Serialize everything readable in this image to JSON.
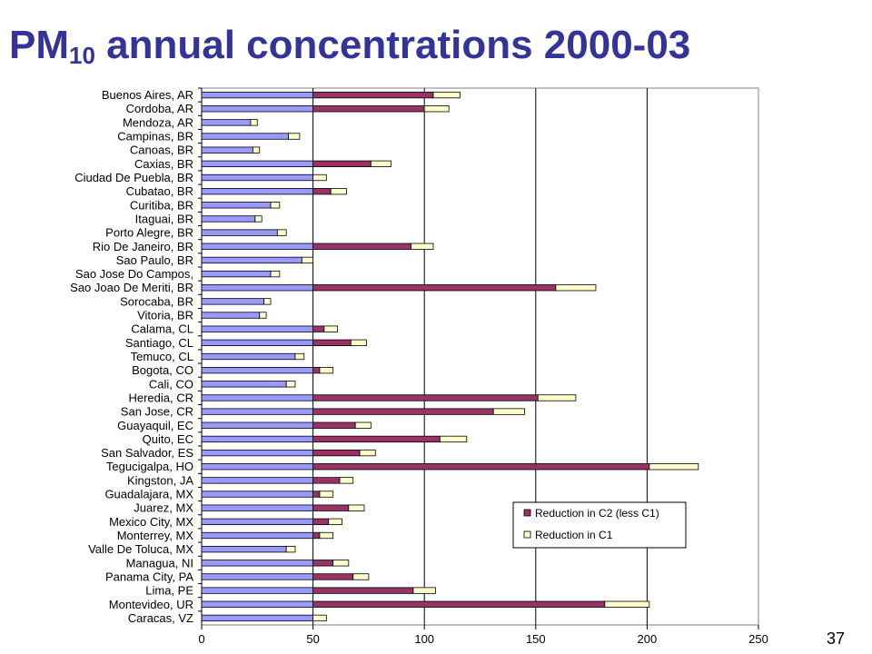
{
  "slide": {
    "title_main": "PM",
    "title_sub": "10",
    "title_rest": " annual concentrations 2000-03",
    "page_number": "37"
  },
  "chart_data": {
    "type": "bar",
    "orientation": "horizontal",
    "stacked": true,
    "title": "PM10 annual concentrations 2000-03",
    "xlabel": "",
    "ylabel": "",
    "xlim": [
      0,
      250
    ],
    "xticks": [
      0,
      50,
      100,
      150,
      200,
      250
    ],
    "grid": "vertical lines at 50, 100, 150, 200",
    "legend_position": "lower-right",
    "colors": {
      "base": "#9999ff",
      "c2": "#993366",
      "c1": "#ffffcc"
    },
    "categories": [
      "Buenos Aires, AR",
      "Cordoba, AR",
      "Mendoza, AR",
      "Campinas, BR",
      "Canoas, BR",
      "Caxias, BR",
      "Ciudad De Puebla, BR",
      "Cubatao, BR",
      "Curitiba, BR",
      "Itaguai, BR",
      "Porto Alegre, BR",
      "Rio De Janeiro, BR",
      "Sao Paulo, BR",
      "Sao Jose Do Campos,",
      "Sao Joao De Meriti, BR",
      "Sorocaba, BR",
      "Vitoria, BR",
      "Calama, CL",
      "Santiago, CL",
      "Temuco, CL",
      "Bogota, CO",
      "Cali, CO",
      "Heredia, CR",
      "San Jose, CR",
      "Guayaquil, EC",
      "Quito, EC",
      "San Salvador, ES",
      "Tegucigalpa, HO",
      "Kingston, JA",
      "Guadalajara, MX",
      "Juarez, MX",
      "Mexico City, MX",
      "Monterrey, MX",
      "Valle De Toluca, MX",
      "Managua, NI",
      "Panama City, PA",
      "Lima, PE",
      "Montevideo, UR",
      "Caracas, VZ"
    ],
    "series": [
      {
        "name": "",
        "color": "#9999ff",
        "values": [
          50,
          50,
          22,
          39,
          23,
          50,
          50,
          50,
          31,
          24,
          34,
          50,
          45,
          31,
          50,
          28,
          26,
          50,
          50,
          42,
          50,
          38,
          50,
          50,
          50,
          50,
          50,
          50,
          50,
          50,
          50,
          50,
          50,
          38,
          50,
          50,
          50,
          50,
          50
        ]
      },
      {
        "name": "Reduction in C2 (less C1)",
        "color": "#993366",
        "values": [
          54,
          50,
          0,
          0,
          0,
          26,
          0,
          8,
          0,
          0,
          0,
          44,
          0,
          0,
          109,
          0,
          0,
          5,
          17,
          0,
          3,
          0,
          101,
          81,
          19,
          57,
          21,
          151,
          12,
          3,
          16,
          7,
          3,
          0,
          9,
          18,
          45,
          131,
          0
        ]
      },
      {
        "name": "Reduction in C1",
        "color": "#ffffcc",
        "values": [
          12,
          11,
          3,
          5,
          3,
          9,
          6,
          7,
          4,
          3,
          4,
          10,
          5,
          4,
          18,
          3,
          3,
          6,
          7,
          4,
          6,
          4,
          17,
          14,
          7,
          12,
          7,
          22,
          6,
          6,
          7,
          6,
          6,
          4,
          7,
          7,
          10,
          20,
          6
        ]
      }
    ]
  }
}
